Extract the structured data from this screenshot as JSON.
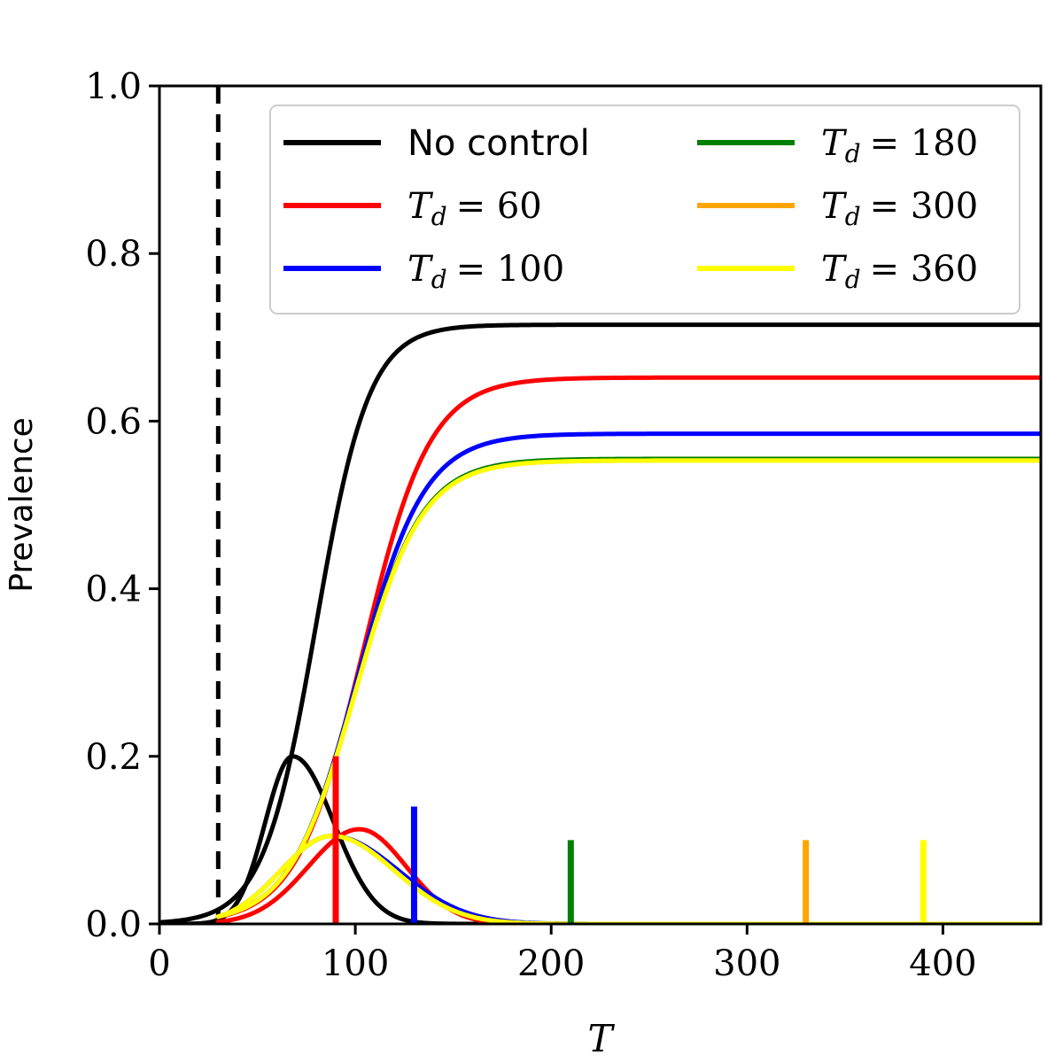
{
  "chart_data": {
    "type": "line",
    "title": "",
    "xlabel": "T",
    "ylabel": "Prevalence",
    "xlim": [
      0,
      450
    ],
    "ylim": [
      0.0,
      1.0
    ],
    "xticks": [
      0,
      100,
      200,
      300,
      400
    ],
    "xtick_labels": [
      "0",
      "100",
      "200",
      "300",
      "400"
    ],
    "yticks": [
      0.0,
      0.2,
      0.4,
      0.6,
      0.8,
      1.0
    ],
    "ytick_labels": [
      "0.0",
      "0.2",
      "0.4",
      "0.6",
      "0.8",
      "1.0"
    ],
    "grid": false,
    "legend_position": "top-right",
    "legend_columns": 2,
    "reference_line": {
      "x": 30,
      "style": "dashed",
      "color": "#000000"
    },
    "series": [
      {
        "name": "No control",
        "label_text": "No control",
        "color": "#000000",
        "prevalence_curve": {
          "final": 0.715,
          "midpoint": 80,
          "scale": 13.5,
          "start": 0
        },
        "incidence_curve": {
          "peak": 0.2,
          "peak_at": 68,
          "width_left": 14,
          "width_right": 21,
          "start": 0
        },
        "control_start": null,
        "marker_height": null
      },
      {
        "name": "T_d = 60",
        "label_text": "T",
        "label_sub": "d",
        "label_value": "= 60",
        "color": "#ff0000",
        "prevalence_curve": {
          "final": 0.652,
          "midpoint": 104,
          "scale": 17,
          "start": 30
        },
        "incidence_curve": {
          "peak": 0.113,
          "peak_at": 102,
          "width_left": 26,
          "width_right": 24,
          "start": 30
        },
        "control_start": 90,
        "marker_height": 0.2
      },
      {
        "name": "T_d = 100",
        "label_text": "T",
        "label_sub": "d",
        "label_value": "= 100",
        "color": "#0000ff",
        "prevalence_curve": {
          "final": 0.585,
          "midpoint": 101,
          "scale": 17,
          "start": 30
        },
        "incidence_curve": {
          "peak": 0.105,
          "peak_at": 88,
          "width_left": 26,
          "width_right": 34,
          "start": 30
        },
        "control_start": 130,
        "marker_height": 0.14
      },
      {
        "name": "T_d = 180",
        "label_text": "T",
        "label_sub": "d",
        "label_value": "= 180",
        "color": "#008000",
        "prevalence_curve": {
          "final": 0.555,
          "midpoint": 100,
          "scale": 17,
          "start": 30
        },
        "incidence_curve": {
          "peak": 0.105,
          "peak_at": 88,
          "width_left": 26,
          "width_right": 32,
          "start": 30
        },
        "control_start": 210,
        "marker_height": 0.1
      },
      {
        "name": "T_d = 300",
        "label_text": "T",
        "label_sub": "d",
        "label_value": "= 300",
        "color": "#ffa500",
        "prevalence_curve": {
          "final": 0.553,
          "midpoint": 100,
          "scale": 17,
          "start": 30
        },
        "incidence_curve": {
          "peak": 0.105,
          "peak_at": 88,
          "width_left": 26,
          "width_right": 32,
          "start": 30
        },
        "control_start": 330,
        "marker_height": 0.1
      },
      {
        "name": "T_d = 360",
        "label_text": "T",
        "label_sub": "d",
        "label_value": "= 360",
        "color": "#ffff00",
        "prevalence_curve": {
          "final": 0.553,
          "midpoint": 100,
          "scale": 17,
          "start": 30
        },
        "incidence_curve": {
          "peak": 0.105,
          "peak_at": 88,
          "width_left": 26,
          "width_right": 32,
          "start": 30
        },
        "control_start": 390,
        "marker_height": 0.1
      }
    ]
  }
}
